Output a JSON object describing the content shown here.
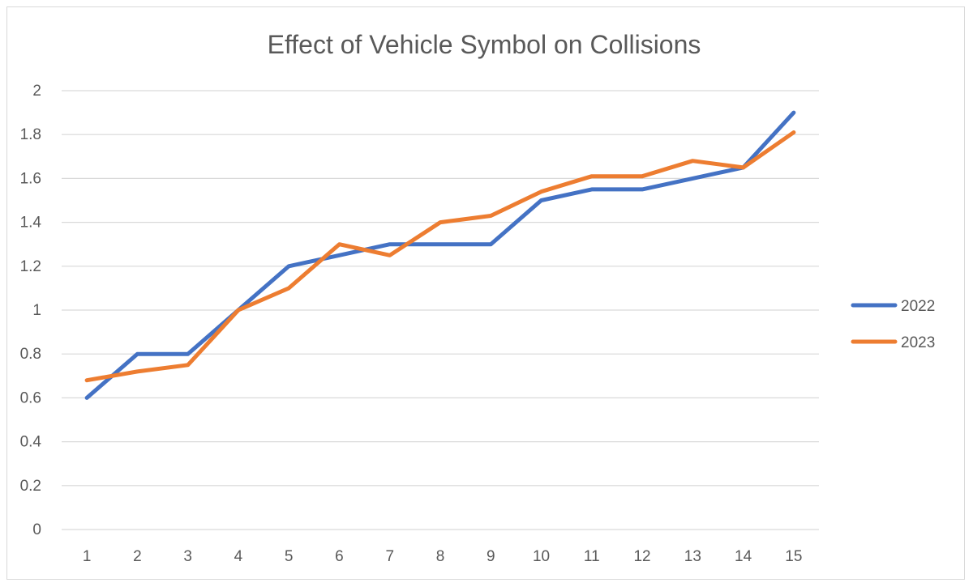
{
  "chart_data": {
    "type": "line",
    "title": "Effect of Vehicle Symbol on Collisions",
    "xlabel": "",
    "ylabel": "",
    "categories": [
      "1",
      "2",
      "3",
      "4",
      "5",
      "6",
      "7",
      "8",
      "9",
      "10",
      "11",
      "12",
      "13",
      "14",
      "15"
    ],
    "ylim": [
      0,
      2
    ],
    "yticks": [
      "0",
      "0.2",
      "0.4",
      "0.6",
      "0.8",
      "1",
      "1.2",
      "1.4",
      "1.6",
      "1.8",
      "2"
    ],
    "grid": true,
    "legend_position": "right",
    "series": [
      {
        "name": "2022",
        "color": "#4472C4",
        "values": [
          0.6,
          0.8,
          0.8,
          1.0,
          1.2,
          1.25,
          1.3,
          1.3,
          1.3,
          1.5,
          1.55,
          1.55,
          1.6,
          1.65,
          1.9
        ]
      },
      {
        "name": "2023",
        "color": "#ED7D31",
        "values": [
          0.68,
          0.72,
          0.75,
          1.0,
          1.1,
          1.3,
          1.25,
          1.4,
          1.43,
          1.54,
          1.61,
          1.61,
          1.68,
          1.65,
          1.81
        ]
      }
    ]
  }
}
